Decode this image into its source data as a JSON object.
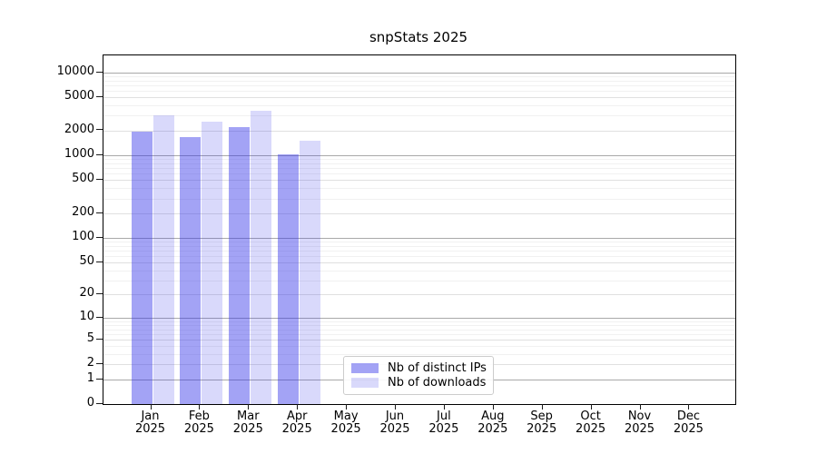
{
  "chart_data": {
    "type": "bar",
    "title": "snpStats 2025",
    "categories": [
      "Jan",
      "Feb",
      "Mar",
      "Apr",
      "May",
      "Jun",
      "Jul",
      "Aug",
      "Sep",
      "Oct",
      "Nov",
      "Dec"
    ],
    "year_label": "2025",
    "series": [
      {
        "key": "distinct-ips",
        "name": "Nb of distinct IPs",
        "color": "rgba(45,45,232,0.44)",
        "values": [
          1950,
          1670,
          2200,
          1020,
          null,
          null,
          null,
          null,
          null,
          null,
          null,
          null
        ]
      },
      {
        "key": "downloads",
        "name": "Nb of downloads",
        "color": "rgba(45,45,232,0.18)",
        "values": [
          3000,
          2550,
          3400,
          1500,
          null,
          null,
          null,
          null,
          null,
          null,
          null,
          null
        ]
      }
    ],
    "yscale": "log1p",
    "ylim": [
      0,
      16000
    ],
    "y_ticks": [
      0,
      1,
      2,
      5,
      10,
      20,
      50,
      100,
      200,
      500,
      1000,
      2000,
      5000,
      10000
    ],
    "grid": {
      "orientation": "horizontal",
      "major_color": "#a9a9a9",
      "labeled_tick_color": "#e0e0e0",
      "minor_color": "#f1f1f1"
    },
    "legend": {
      "position": "inside-bottom-center",
      "border_color": "#cccccc",
      "background": "rgba(255,255,255,0.9)"
    }
  }
}
